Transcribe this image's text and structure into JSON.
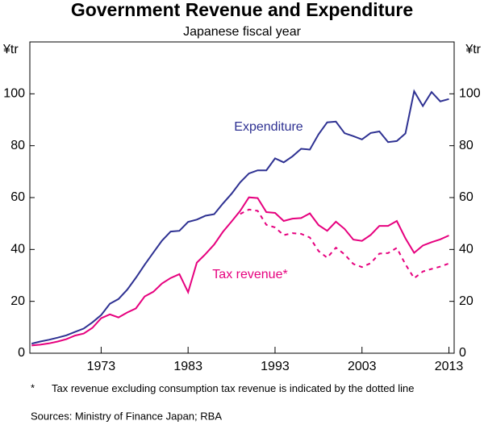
{
  "chart_data": {
    "type": "line",
    "title": "Government Revenue and Expenditure",
    "subtitle": "Japanese fiscal year",
    "y_label": "¥tr",
    "x": [
      1965,
      1966,
      1967,
      1968,
      1969,
      1970,
      1971,
      1972,
      1973,
      1974,
      1975,
      1976,
      1977,
      1978,
      1979,
      1980,
      1981,
      1982,
      1983,
      1984,
      1985,
      1986,
      1987,
      1988,
      1989,
      1990,
      1991,
      1992,
      1993,
      1994,
      1995,
      1996,
      1997,
      1998,
      1999,
      2000,
      2001,
      2002,
      2003,
      2004,
      2005,
      2006,
      2007,
      2008,
      2009,
      2010,
      2011,
      2012,
      2013
    ],
    "series": [
      {
        "name": "Expenditure",
        "color": "#2e3192",
        "dashed": false,
        "values": [
          3.7,
          4.5,
          5.2,
          6.0,
          6.9,
          8.2,
          9.5,
          11.9,
          14.7,
          19.1,
          20.9,
          24.5,
          29.1,
          34.1,
          38.8,
          43.4,
          46.9,
          47.2,
          50.6,
          51.5,
          53.0,
          53.6,
          57.7,
          61.5,
          65.9,
          69.3,
          70.5,
          70.5,
          75.1,
          73.6,
          75.9,
          78.8,
          78.5,
          84.4,
          89.0,
          89.3,
          84.8,
          83.7,
          82.4,
          84.9,
          85.5,
          81.4,
          81.8,
          84.7,
          101.0,
          95.3,
          100.7,
          97.1,
          98.0
        ]
      },
      {
        "name": "Tax revenue*",
        "color": "#e6007e",
        "dashed": false,
        "values": [
          3.0,
          3.3,
          3.8,
          4.5,
          5.4,
          6.8,
          7.6,
          9.8,
          13.5,
          15.0,
          13.8,
          15.7,
          17.3,
          21.9,
          23.7,
          26.9,
          29.0,
          30.5,
          23.5,
          34.9,
          38.2,
          41.9,
          46.8,
          50.8,
          54.9,
          60.1,
          59.8,
          54.4,
          54.1,
          51.0,
          51.9,
          52.1,
          53.9,
          49.4,
          47.2,
          50.7,
          47.9,
          43.8,
          43.3,
          45.6,
          49.1,
          49.1,
          51.0,
          44.3,
          38.7,
          41.5,
          42.8,
          43.9,
          45.4
        ]
      },
      {
        "color": "#e6007e",
        "dashed": true,
        "values": [
          null,
          null,
          null,
          null,
          null,
          null,
          null,
          null,
          null,
          null,
          null,
          null,
          null,
          null,
          null,
          null,
          null,
          null,
          null,
          null,
          null,
          null,
          null,
          null,
          53.7,
          55.4,
          54.9,
          49.5,
          48.5,
          45.5,
          46.3,
          46.0,
          44.6,
          39.4,
          36.8,
          40.7,
          38.1,
          34.4,
          33.2,
          34.7,
          38.4,
          38.6,
          40.6,
          34.3,
          28.9,
          31.5,
          32.5,
          33.4,
          34.6
        ]
      }
    ],
    "xlim": [
      1964.8,
      2013.6
    ],
    "xticks": [
      1973,
      1983,
      1993,
      2003,
      2013
    ],
    "ylim": [
      0,
      120
    ],
    "yticks": [
      0,
      20,
      40,
      60,
      80,
      100
    ],
    "footnote_marker": "*",
    "footnote": "Tax revenue excluding consumption tax revenue is indicated by the dotted line",
    "sources": "Sources: Ministry of Finance Japan; RBA"
  }
}
